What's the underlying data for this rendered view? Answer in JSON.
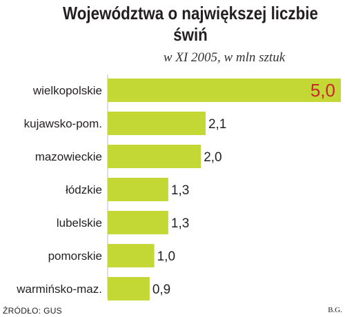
{
  "title": "Województwa o największej liczbie świń",
  "subtitle": "w XI 2005, w mln sztuk",
  "source": "ŹRÓDŁO: GUS",
  "author": "B.G.",
  "colors": {
    "bar": "#c3d735",
    "highlight_label": "#c6262e",
    "label": "#231f20",
    "axis": "#bbbbbb"
  },
  "chart_data": {
    "type": "bar",
    "orientation": "horizontal",
    "categories": [
      "wielkopolskie",
      "kujawsko-pom.",
      "mazowieckie",
      "łódzkie",
      "lubelskie",
      "pomorskie",
      "warmińsko-maz."
    ],
    "values": [
      5.0,
      2.1,
      2.0,
      1.3,
      1.3,
      1.0,
      0.9
    ],
    "value_labels": [
      "5,0",
      "2,1",
      "2,0",
      "1,3",
      "1,3",
      "1,0",
      "0,9"
    ],
    "xlim": [
      0,
      5.0
    ],
    "grid": false,
    "highlight_index": 0
  }
}
